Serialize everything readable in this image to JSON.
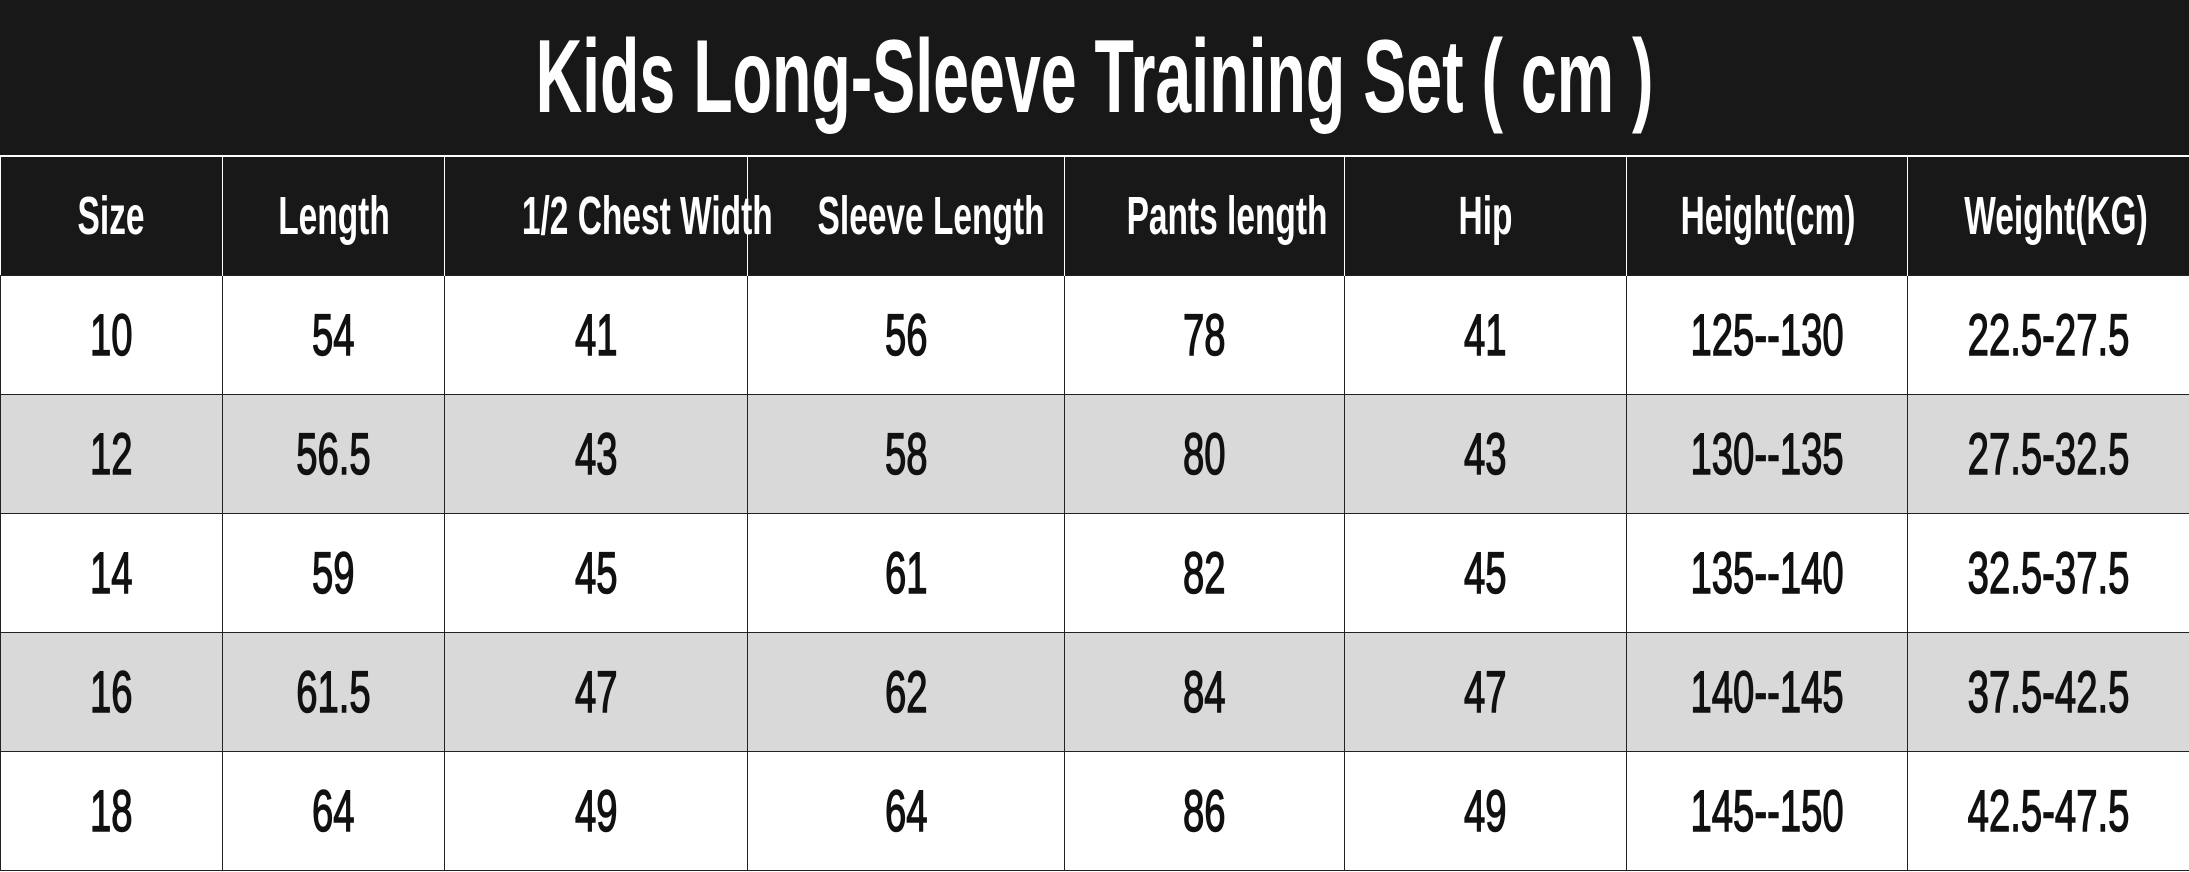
{
  "title": "Kids Long-Sleeve Training Set ( cm )",
  "headers": [
    "Size",
    "Length",
    "1/2 Chest Width",
    "Sleeve Length",
    "Pants length",
    "Hip",
    "Height(cm)",
    "Weight(KG)"
  ],
  "rows": [
    [
      "10",
      "54",
      "41",
      "56",
      "78",
      "41",
      "125--130",
      "22.5-27.5"
    ],
    [
      "12",
      "56.5",
      "43",
      "58",
      "80",
      "43",
      "130--135",
      "27.5-32.5"
    ],
    [
      "14",
      "59",
      "45",
      "61",
      "82",
      "45",
      "135--140",
      "32.5-37.5"
    ],
    [
      "16",
      "61.5",
      "47",
      "62",
      "84",
      "47",
      "140--145",
      "37.5-42.5"
    ],
    [
      "18",
      "64",
      "49",
      "64",
      "86",
      "49",
      "145--150",
      "42.5-47.5"
    ]
  ],
  "colors": {
    "header_bg": "#181818",
    "alt_row_bg": "#d9d9d9",
    "row_bg": "#ffffff"
  }
}
